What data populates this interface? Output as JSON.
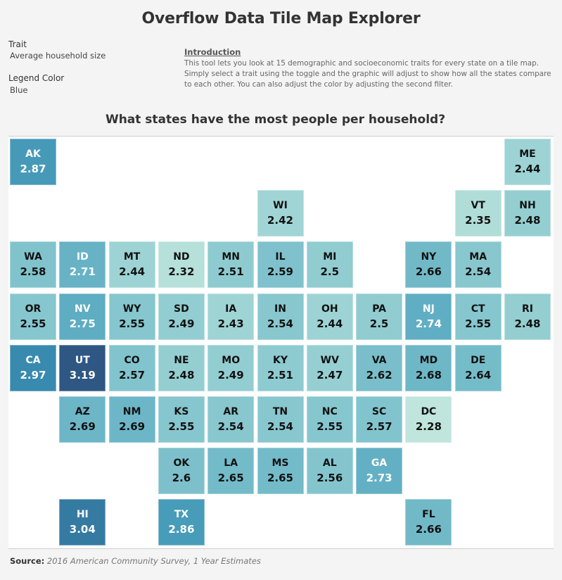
{
  "header": {
    "title": "Overflow Data Tile Map Explorer"
  },
  "filters": {
    "trait": {
      "label": "Trait",
      "value": "Average household size"
    },
    "legend_color": {
      "label": "Legend Color",
      "value": "Blue"
    }
  },
  "intro": {
    "heading": "Introduction",
    "body": "This tool lets you look at 15 demographic and socioeconomic traits for every state on a tile map. Simply select a trait using the toggle and the graphic will adjust to show how all the states compare to each other. You can also adjust the color by adjusting the second filter."
  },
  "map": {
    "subtitle": "What states have the most people per household?"
  },
  "source": {
    "label": "Source:",
    "text": "2016 American Community Survey, 1 Year Estimates"
  },
  "chart_data": {
    "type": "heatmap",
    "title": "What states have the most people per household?",
    "metric": "Average household size",
    "color_scheme": "Blue (light teal to dark blue)",
    "color_range": {
      "min": 2.28,
      "max": 3.19,
      "min_color": "#bfe5dc",
      "max_color": "#2e5783"
    },
    "tiles": [
      {
        "state": "AK",
        "value": 2.87,
        "row": 0,
        "col": 0
      },
      {
        "state": "ME",
        "value": 2.44,
        "row": 0,
        "col": 10
      },
      {
        "state": "WI",
        "value": 2.42,
        "row": 1,
        "col": 5
      },
      {
        "state": "VT",
        "value": 2.35,
        "row": 1,
        "col": 9
      },
      {
        "state": "NH",
        "value": 2.48,
        "row": 1,
        "col": 10
      },
      {
        "state": "WA",
        "value": 2.58,
        "row": 2,
        "col": 0
      },
      {
        "state": "ID",
        "value": 2.71,
        "row": 2,
        "col": 1
      },
      {
        "state": "MT",
        "value": 2.44,
        "row": 2,
        "col": 2
      },
      {
        "state": "ND",
        "value": 2.32,
        "row": 2,
        "col": 3
      },
      {
        "state": "MN",
        "value": 2.51,
        "row": 2,
        "col": 4
      },
      {
        "state": "IL",
        "value": 2.59,
        "row": 2,
        "col": 5
      },
      {
        "state": "MI",
        "value": 2.5,
        "row": 2,
        "col": 6
      },
      {
        "state": "NY",
        "value": 2.66,
        "row": 2,
        "col": 8
      },
      {
        "state": "MA",
        "value": 2.54,
        "row": 2,
        "col": 9
      },
      {
        "state": "OR",
        "value": 2.55,
        "row": 3,
        "col": 0
      },
      {
        "state": "NV",
        "value": 2.75,
        "row": 3,
        "col": 1
      },
      {
        "state": "WY",
        "value": 2.55,
        "row": 3,
        "col": 2
      },
      {
        "state": "SD",
        "value": 2.49,
        "row": 3,
        "col": 3
      },
      {
        "state": "IA",
        "value": 2.43,
        "row": 3,
        "col": 4
      },
      {
        "state": "IN",
        "value": 2.54,
        "row": 3,
        "col": 5
      },
      {
        "state": "OH",
        "value": 2.44,
        "row": 3,
        "col": 6
      },
      {
        "state": "PA",
        "value": 2.5,
        "row": 3,
        "col": 7
      },
      {
        "state": "NJ",
        "value": 2.74,
        "row": 3,
        "col": 8
      },
      {
        "state": "CT",
        "value": 2.55,
        "row": 3,
        "col": 9
      },
      {
        "state": "RI",
        "value": 2.48,
        "row": 3,
        "col": 10
      },
      {
        "state": "CA",
        "value": 2.97,
        "row": 4,
        "col": 0
      },
      {
        "state": "UT",
        "value": 3.19,
        "row": 4,
        "col": 1
      },
      {
        "state": "CO",
        "value": 2.57,
        "row": 4,
        "col": 2
      },
      {
        "state": "NE",
        "value": 2.48,
        "row": 4,
        "col": 3
      },
      {
        "state": "MO",
        "value": 2.49,
        "row": 4,
        "col": 4
      },
      {
        "state": "KY",
        "value": 2.51,
        "row": 4,
        "col": 5
      },
      {
        "state": "WV",
        "value": 2.47,
        "row": 4,
        "col": 6
      },
      {
        "state": "VA",
        "value": 2.62,
        "row": 4,
        "col": 7
      },
      {
        "state": "MD",
        "value": 2.68,
        "row": 4,
        "col": 8
      },
      {
        "state": "DE",
        "value": 2.64,
        "row": 4,
        "col": 9
      },
      {
        "state": "AZ",
        "value": 2.69,
        "row": 5,
        "col": 1
      },
      {
        "state": "NM",
        "value": 2.69,
        "row": 5,
        "col": 2
      },
      {
        "state": "KS",
        "value": 2.55,
        "row": 5,
        "col": 3
      },
      {
        "state": "AR",
        "value": 2.54,
        "row": 5,
        "col": 4
      },
      {
        "state": "TN",
        "value": 2.54,
        "row": 5,
        "col": 5
      },
      {
        "state": "NC",
        "value": 2.55,
        "row": 5,
        "col": 6
      },
      {
        "state": "SC",
        "value": 2.57,
        "row": 5,
        "col": 7
      },
      {
        "state": "DC",
        "value": 2.28,
        "row": 5,
        "col": 8
      },
      {
        "state": "OK",
        "value": 2.6,
        "row": 6,
        "col": 3
      },
      {
        "state": "LA",
        "value": 2.65,
        "row": 6,
        "col": 4
      },
      {
        "state": "MS",
        "value": 2.65,
        "row": 6,
        "col": 5
      },
      {
        "state": "AL",
        "value": 2.56,
        "row": 6,
        "col": 6
      },
      {
        "state": "GA",
        "value": 2.73,
        "row": 6,
        "col": 7
      },
      {
        "state": "HI",
        "value": 3.04,
        "row": 7,
        "col": 1
      },
      {
        "state": "TX",
        "value": 2.86,
        "row": 7,
        "col": 3
      },
      {
        "state": "FL",
        "value": 2.66,
        "row": 7,
        "col": 8
      }
    ]
  }
}
